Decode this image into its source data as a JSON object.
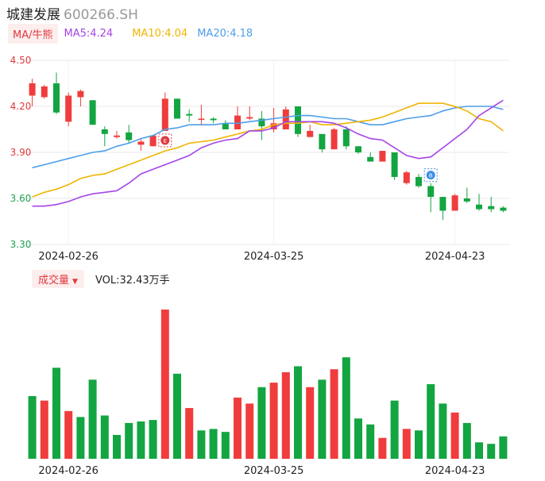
{
  "header": {
    "name": "城建发展",
    "code": "600266.SH"
  },
  "ma_legend": {
    "label": "MA/牛熊",
    "ma5": "MA5:4.24",
    "ma10": "MA10:4.04",
    "ma20": "MA20:4.18"
  },
  "volume_legend": {
    "label": "成交量",
    "text": "VOL:32.43万手"
  },
  "colors": {
    "up": "#f03c3c",
    "down": "#13a541",
    "ma5": "#a545e8",
    "ma10": "#f0b400",
    "ma20": "#4d9ee8",
    "grid": "#e9e9e9"
  },
  "markers": [
    {
      "index": 11,
      "label": "E",
      "color": "#e0393e"
    },
    {
      "index": 33,
      "label": "B",
      "color": "#3a8ee6"
    }
  ],
  "chart_data": [
    {
      "type": "candlestick",
      "y_ticks": [
        "4.50",
        "4.20",
        "3.90",
        "3.60",
        "3.30"
      ],
      "ylim": [
        3.3,
        4.5
      ],
      "x_tick_labels": [
        "2024-02-26",
        "2024-03-25",
        "2024-04-23"
      ],
      "x_tick_indices": [
        3,
        20,
        35
      ],
      "candles": [
        {
          "o": 4.27,
          "h": 4.38,
          "l": 4.2,
          "c": 4.35
        },
        {
          "o": 4.26,
          "h": 4.34,
          "l": 4.25,
          "c": 4.33
        },
        {
          "o": 4.35,
          "h": 4.42,
          "l": 4.15,
          "c": 4.16
        },
        {
          "o": 4.1,
          "h": 4.29,
          "l": 4.07,
          "c": 4.27
        },
        {
          "o": 4.26,
          "h": 4.31,
          "l": 4.2,
          "c": 4.3
        },
        {
          "o": 4.24,
          "h": 4.24,
          "l": 4.08,
          "c": 4.08
        },
        {
          "o": 4.05,
          "h": 4.07,
          "l": 3.94,
          "c": 4.02
        },
        {
          "o": 4.0,
          "h": 4.04,
          "l": 3.99,
          "c": 4.01
        },
        {
          "o": 4.03,
          "h": 4.08,
          "l": 3.96,
          "c": 3.98
        },
        {
          "o": 3.95,
          "h": 3.99,
          "l": 3.91,
          "c": 3.97
        },
        {
          "o": 3.94,
          "h": 4.01,
          "l": 3.94,
          "c": 4.01
        },
        {
          "o": 4.04,
          "h": 4.29,
          "l": 4.04,
          "c": 4.25
        },
        {
          "o": 4.25,
          "h": 4.25,
          "l": 4.12,
          "c": 4.12
        },
        {
          "o": 4.15,
          "h": 4.18,
          "l": 4.1,
          "c": 4.14
        },
        {
          "o": 4.12,
          "h": 4.21,
          "l": 4.08,
          "c": 4.12
        },
        {
          "o": 4.12,
          "h": 4.13,
          "l": 4.09,
          "c": 4.11
        },
        {
          "o": 4.09,
          "h": 4.11,
          "l": 4.05,
          "c": 4.05
        },
        {
          "o": 4.05,
          "h": 4.2,
          "l": 4.05,
          "c": 4.14
        },
        {
          "o": 4.12,
          "h": 4.2,
          "l": 4.11,
          "c": 4.13
        },
        {
          "o": 4.12,
          "h": 4.17,
          "l": 3.98,
          "c": 4.07
        },
        {
          "o": 4.05,
          "h": 4.19,
          "l": 4.03,
          "c": 4.09
        },
        {
          "o": 4.05,
          "h": 4.2,
          "l": 4.05,
          "c": 4.18
        },
        {
          "o": 4.2,
          "h": 4.2,
          "l": 4.0,
          "c": 4.02
        },
        {
          "o": 4.0,
          "h": 4.08,
          "l": 4.0,
          "c": 4.04
        },
        {
          "o": 4.02,
          "h": 4.02,
          "l": 3.9,
          "c": 3.92
        },
        {
          "o": 3.92,
          "h": 4.06,
          "l": 3.92,
          "c": 4.05
        },
        {
          "o": 4.05,
          "h": 4.07,
          "l": 3.92,
          "c": 3.94
        },
        {
          "o": 3.94,
          "h": 3.94,
          "l": 3.89,
          "c": 3.9
        },
        {
          "o": 3.87,
          "h": 3.9,
          "l": 3.84,
          "c": 3.84
        },
        {
          "o": 3.84,
          "h": 3.91,
          "l": 3.84,
          "c": 3.91
        },
        {
          "o": 3.9,
          "h": 3.9,
          "l": 3.72,
          "c": 3.74
        },
        {
          "o": 3.7,
          "h": 3.78,
          "l": 3.69,
          "c": 3.77
        },
        {
          "o": 3.74,
          "h": 3.76,
          "l": 3.67,
          "c": 3.68
        },
        {
          "o": 3.68,
          "h": 3.7,
          "l": 3.51,
          "c": 3.61
        },
        {
          "o": 3.61,
          "h": 3.61,
          "l": 3.46,
          "c": 3.52
        },
        {
          "o": 3.52,
          "h": 3.63,
          "l": 3.52,
          "c": 3.62
        },
        {
          "o": 3.6,
          "h": 3.67,
          "l": 3.57,
          "c": 3.58
        },
        {
          "o": 3.56,
          "h": 3.63,
          "l": 3.52,
          "c": 3.53
        },
        {
          "o": 3.55,
          "h": 3.61,
          "l": 3.51,
          "c": 3.53
        },
        {
          "o": 3.54,
          "h": 3.55,
          "l": 3.51,
          "c": 3.52
        }
      ],
      "ma5": [
        3.55,
        3.55,
        3.56,
        3.58,
        3.61,
        3.63,
        3.64,
        3.65,
        3.7,
        3.76,
        3.79,
        3.82,
        3.85,
        3.88,
        3.93,
        3.96,
        3.98,
        3.99,
        4.04,
        4.04,
        4.06,
        4.1,
        4.1,
        4.1,
        4.1,
        4.09,
        4.06,
        4.02,
        3.99,
        3.98,
        3.93,
        3.88,
        3.86,
        3.87,
        3.93,
        3.99,
        4.05,
        4.14,
        4.19,
        4.24
      ],
      "ma10": [
        3.61,
        3.64,
        3.66,
        3.69,
        3.73,
        3.75,
        3.76,
        3.79,
        3.82,
        3.85,
        3.88,
        3.91,
        3.93,
        3.96,
        3.97,
        3.98,
        4.0,
        4.02,
        4.04,
        4.05,
        4.08,
        4.09,
        4.09,
        4.1,
        4.08,
        4.08,
        4.09,
        4.1,
        4.11,
        4.13,
        4.16,
        4.19,
        4.22,
        4.22,
        4.22,
        4.2,
        4.17,
        4.12,
        4.1,
        4.04
      ],
      "ma20": [
        3.8,
        3.82,
        3.84,
        3.86,
        3.88,
        3.9,
        3.91,
        3.94,
        3.96,
        3.99,
        4.01,
        4.05,
        4.06,
        4.08,
        4.08,
        4.08,
        4.09,
        4.09,
        4.1,
        4.11,
        4.12,
        4.13,
        4.14,
        4.14,
        4.13,
        4.12,
        4.12,
        4.1,
        4.08,
        4.08,
        4.1,
        4.12,
        4.13,
        4.14,
        4.17,
        4.19,
        4.2,
        4.2,
        4.2,
        4.18
      ]
    },
    {
      "type": "bar",
      "title": "VOL:32.43万手",
      "x_tick_labels": [
        "2024-02-26",
        "2024-03-25",
        "2024-04-23"
      ],
      "relative_volume": [
        0.42,
        0.39,
        0.61,
        0.32,
        0.28,
        0.53,
        0.29,
        0.16,
        0.24,
        0.25,
        0.26,
        1.0,
        0.57,
        0.34,
        0.19,
        0.2,
        0.18,
        0.41,
        0.37,
        0.48,
        0.51,
        0.58,
        0.62,
        0.48,
        0.53,
        0.6,
        0.68,
        0.27,
        0.23,
        0.14,
        0.39,
        0.2,
        0.19,
        0.5,
        0.37,
        0.31,
        0.24,
        0.11,
        0.1,
        0.15
      ],
      "volume_colors": [
        "down",
        "up",
        "down",
        "up",
        "down",
        "down",
        "down",
        "down",
        "down",
        "down",
        "down",
        "up",
        "down",
        "up",
        "down",
        "down",
        "down",
        "up",
        "up",
        "down",
        "up",
        "up",
        "down",
        "up",
        "down",
        "up",
        "down",
        "down",
        "down",
        "up",
        "down",
        "up",
        "down",
        "down",
        "down",
        "up",
        "down",
        "down",
        "down",
        "down"
      ]
    }
  ]
}
